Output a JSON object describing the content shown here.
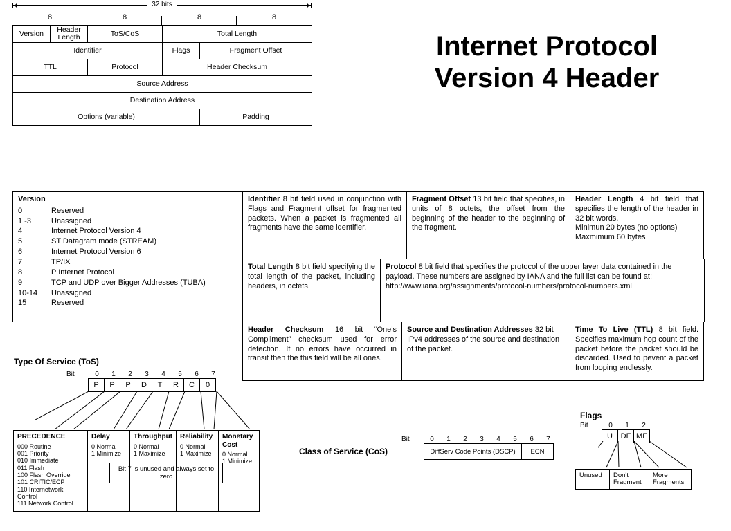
{
  "title_line1": "Internet Protocol",
  "title_line2": "Version 4 Header",
  "bits32_label": "32 bits",
  "octet_labels": [
    "8",
    "8",
    "8",
    "8"
  ],
  "header_rows": {
    "r1": {
      "version": "Version",
      "hlen": "Header Length",
      "tos": "ToS/CoS",
      "totlen": "Total Length"
    },
    "r2": {
      "id": "Identifier",
      "flags": "Flags",
      "frag": "Fragment Offset"
    },
    "r3": {
      "ttl": "TTL",
      "proto": "Protocol",
      "cksum": "Header Checksum"
    },
    "r4": {
      "src": "Source Address"
    },
    "r5": {
      "dst": "Destination Address"
    },
    "r6": {
      "opts": "Options (variable)",
      "pad": "Padding"
    }
  },
  "desc": {
    "version": {
      "title": "Version",
      "rows": [
        [
          "0",
          "Reserved"
        ],
        [
          "1 -3",
          "Unassigned"
        ],
        [
          "4",
          "Internet Protocol Version 4"
        ],
        [
          "5",
          "ST Datagram mode (STREAM)"
        ],
        [
          "6",
          "Internet Protocol Version 6"
        ],
        [
          "7",
          "TP/IX"
        ],
        [
          "8",
          "P Internet Protocol"
        ],
        [
          "9",
          "TCP and UDP over Bigger Addresses (TUBA)"
        ],
        [
          "10-14",
          "Unassigned"
        ],
        [
          "15",
          "Reserved"
        ]
      ]
    },
    "identifier": {
      "title": "Identifier",
      "body": "8 bit field used in conjunction with Flags and Fragment offset for fragmented packets.  When a packet is fragmented all fragments have the same identifier."
    },
    "frag": {
      "title": "Fragment Offset",
      "body": "13 bit field that specifies, in units of 8 octets,  the offset from the beginning of the header to the beginning of the fragment."
    },
    "hlen": {
      "title": "Header Length",
      "body": "4 bit field that specifies the length of the header in 32 bit words.",
      "l2": "Minimun 20 bytes (no options)",
      "l3": "Maxmimum 60 bytes"
    },
    "totlen": {
      "title": "Total Length",
      "body": "8 bit field specifying the total length of the packet, including headers, in octets."
    },
    "proto": {
      "title": "Protocol",
      "body": "8 bit field that specifies the protocol of the upper layer data contained in the payload.   These numbers are assigned by IANA and the full list can be found at:",
      "url": "http://www.iana.org/assignments/protocol-numbers/protocol-numbers.xml"
    },
    "cksum": {
      "title": "Header Checksum",
      "body": "16 bit “One’s Compliment” checksum used for error detection.  If no errors have occurred in transit then the this field will be all ones."
    },
    "addr": {
      "title": "Source and Destination Addresses",
      "body": "32 bit IPv4 addresses of the source and destination of the packet."
    },
    "ttl": {
      "title": "Time To Live (TTL)",
      "body": "8 bit field.  Specifies maximum hop count of the packet before the packet should be discarded.  Used to pevent a packet from looping endlessly."
    }
  },
  "tos": {
    "title": "Type Of Service (ToS)",
    "bit_word": "Bit",
    "bits": [
      "0",
      "1",
      "2",
      "3",
      "4",
      "5",
      "6",
      "7"
    ],
    "cells": [
      "P",
      "P",
      "P",
      "D",
      "T",
      "R",
      "C",
      "0"
    ],
    "precedence": {
      "title": "PRECEDENCE",
      "rows": [
        [
          "000",
          "Routine"
        ],
        [
          "001",
          "Priority"
        ],
        [
          "010",
          "Immediate"
        ],
        [
          "011",
          "Flash"
        ],
        [
          "100",
          "Flash Override"
        ],
        [
          "101",
          "CRITIC/ECP"
        ],
        [
          "110",
          "Internetwork Control"
        ],
        [
          "111",
          "Network Control"
        ]
      ]
    },
    "delay": {
      "title": "Delay",
      "r0": "0  Normal",
      "r1": "1  Minimize"
    },
    "throughput": {
      "title": "Throughput",
      "r0": "0  Normal",
      "r1": "1  Maximize"
    },
    "reliability": {
      "title": "Reliability",
      "r0": "0  Normal",
      "r1": "1  Maximize"
    },
    "monetary": {
      "title": "Monetary Cost",
      "r0": "0  Normal",
      "r1": "1  Minimize"
    },
    "note": "Bit 7 is unused and always set to zero"
  },
  "cos": {
    "title": "Class of Service (CoS)",
    "bit_word": "Bit",
    "bits": [
      "0",
      "1",
      "2",
      "3",
      "4",
      "5",
      "6",
      "7"
    ],
    "dscp": "DiffServ Code Points (DSCP)",
    "ecn": "ECN"
  },
  "flags": {
    "title": "Flags",
    "bit_word": "Bit",
    "bits": [
      "0",
      "1",
      "2"
    ],
    "cells": [
      "U",
      "DF",
      "MF"
    ],
    "boxes": {
      "u": "Unused",
      "df": "Don't\nFragment",
      "mf": "More\nFragments"
    }
  },
  "style": {
    "border_color": "#000000",
    "bg": "#ffffff",
    "title_fontsize": 40,
    "body_fontsize": 11
  }
}
